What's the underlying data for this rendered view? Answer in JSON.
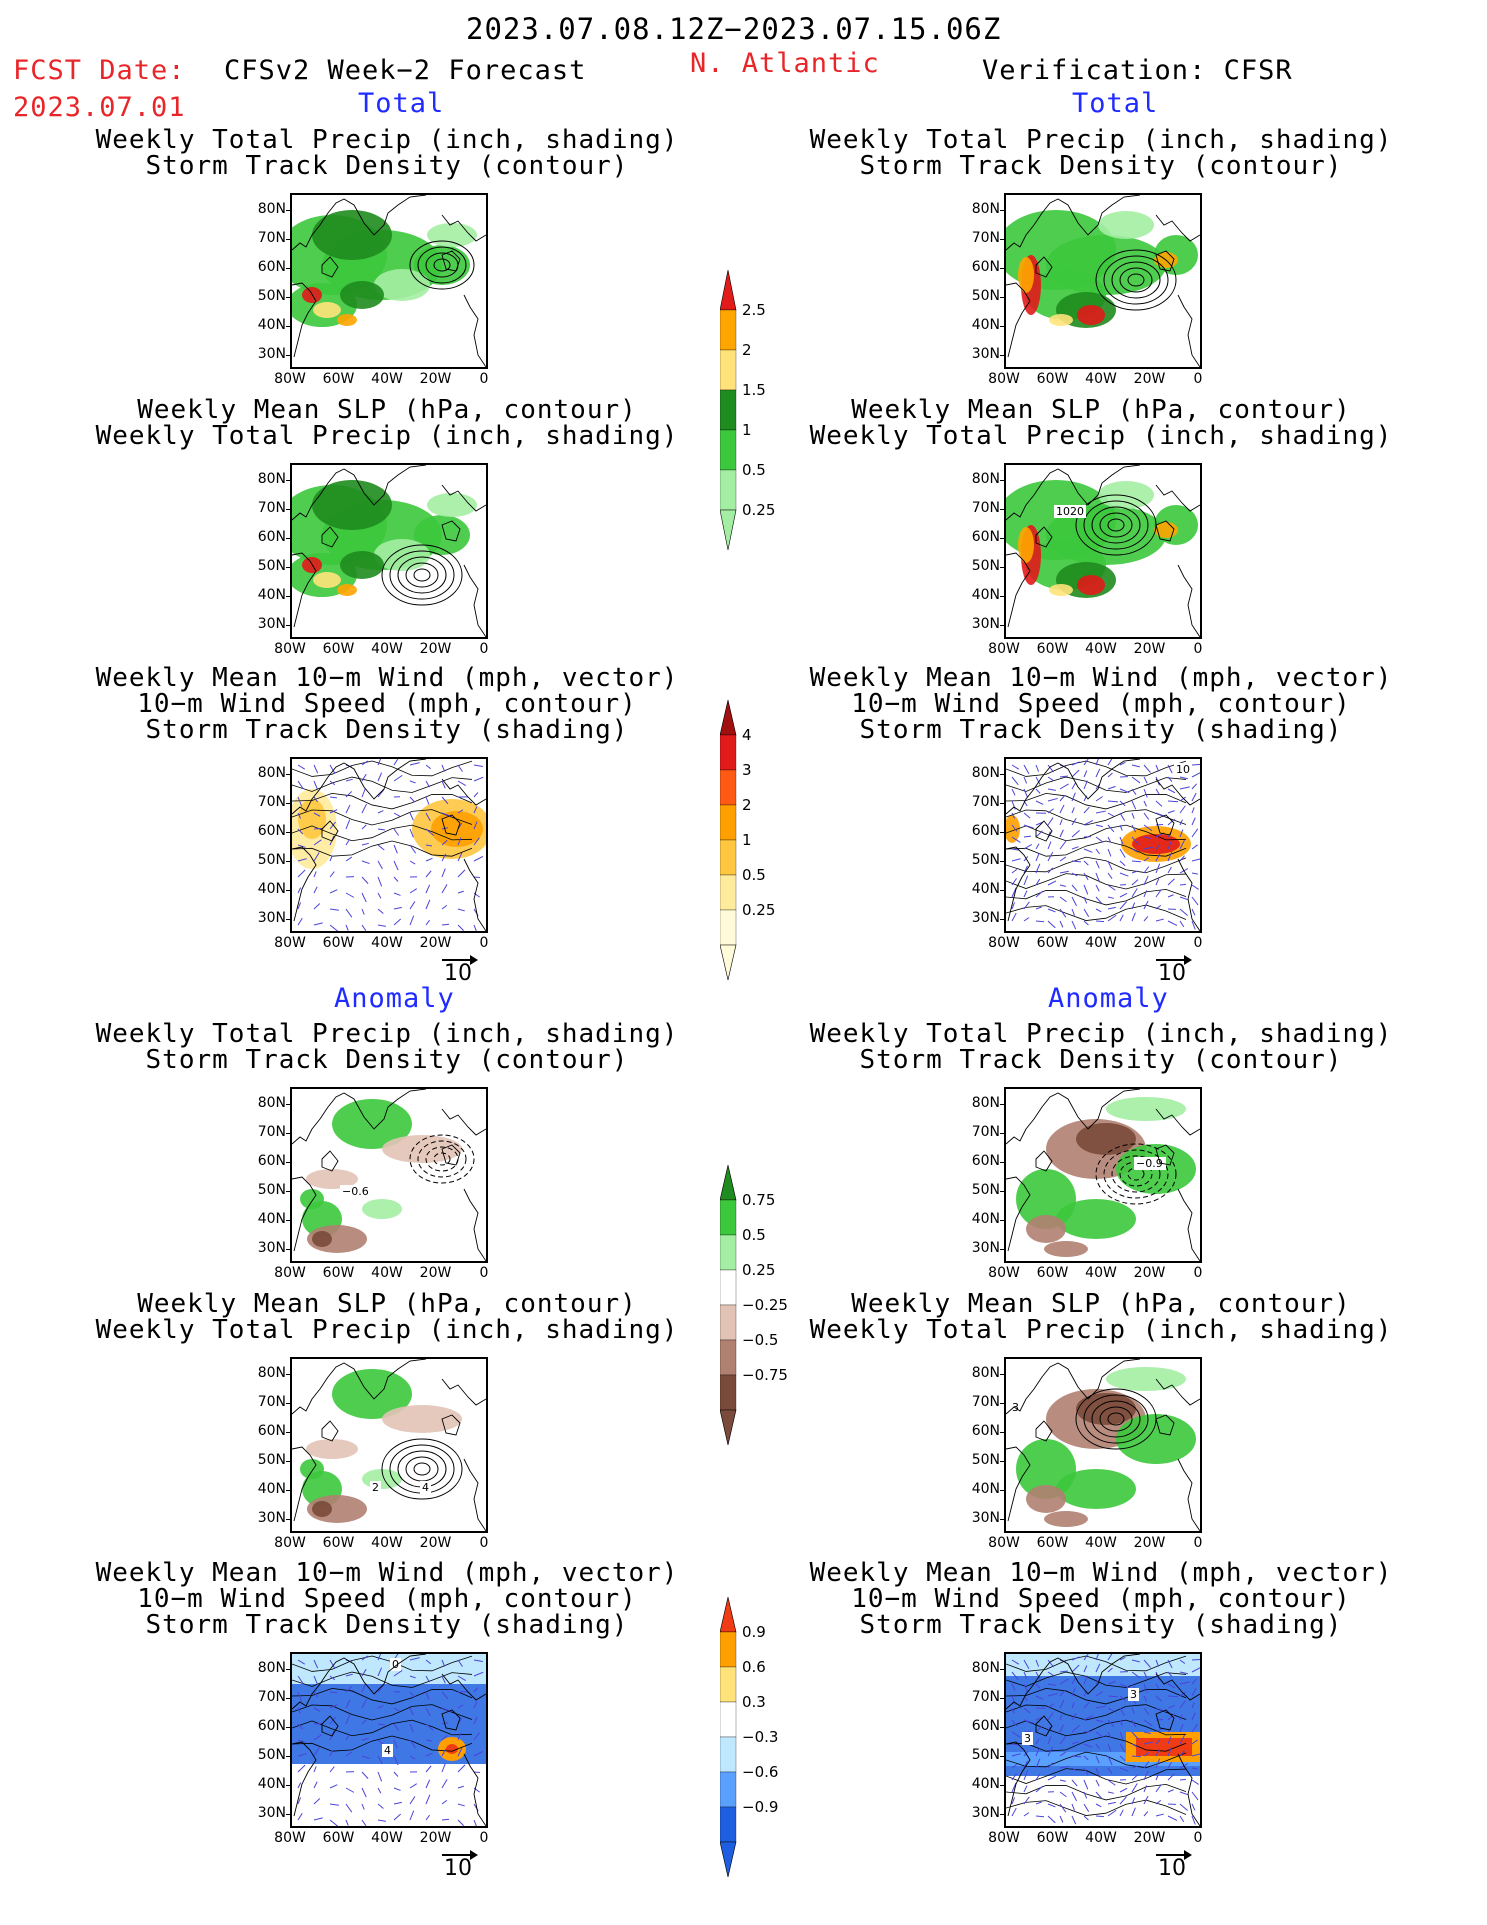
{
  "header": {
    "date_range": "2023.07.08.12Z−2023.07.15.06Z",
    "fcst_label": "FCST Date:",
    "fcst_date": "2023.07.01",
    "left_title": "CFSv2 Week−2 Forecast",
    "region": "N. Atlantic",
    "right_title": "Verification: CFSR",
    "total_label": "Total",
    "anomaly_label": "Anomaly"
  },
  "panel_titles": {
    "precip_storm": [
      "Weekly Total Precip (inch, shading)",
      "Storm Track Density (contour)"
    ],
    "slp_precip": [
      "Weekly Mean SLP (hPa, contour)",
      "Weekly Total Precip (inch, shading)"
    ],
    "wind_storm": [
      "Weekly Mean 10−m Wind (mph, vector)",
      "10−m Wind Speed (mph, contour)",
      "Storm Track Density (shading)"
    ]
  },
  "axes": {
    "lat_labels": [
      "80N",
      "70N",
      "60N",
      "50N",
      "40N",
      "30N"
    ],
    "lon_labels": [
      "80W",
      "60W",
      "40W",
      "20W",
      "0"
    ],
    "vector_ref": "10"
  },
  "contour_labels": {
    "total_slp_obs": "1020",
    "total_wind_obs": "10",
    "anom_precip_fcst": "−0.6",
    "anom_precip_obs": "−0.9",
    "anom_slp_fcst_a": "2",
    "anom_slp_fcst_b": "4",
    "anom_slp_obs": "3",
    "anom_wind_fcst_a": "0",
    "anom_wind_fcst_b": "4",
    "anom_wind_obs_a": "3",
    "anom_wind_obs_b": "3"
  },
  "colorbars": {
    "total_precip": {
      "labels": [
        "2.5",
        "2",
        "1.5",
        "1",
        "0.5",
        "0.25"
      ],
      "colors": [
        "#e11a1a",
        "#ffa500",
        "#ffe37a",
        "#1e8c1e",
        "#3cc83c",
        "#a3eea3"
      ]
    },
    "total_storm": {
      "labels": [
        "4",
        "3",
        "2",
        "1",
        "0.5",
        "0.25"
      ],
      "colors": [
        "#a01010",
        "#e11a1a",
        "#ff5a14",
        "#ffa000",
        "#ffc640",
        "#ffeb9c",
        "#fffbd8"
      ]
    },
    "anom_precip": {
      "labels": [
        "0.75",
        "0.5",
        "0.25",
        "−0.25",
        "−0.5",
        "−0.75"
      ],
      "colors": [
        "#1e8c1e",
        "#3cc83c",
        "#a3eea3",
        "#ffffff",
        "#e3c3b6",
        "#b08070",
        "#7a4a3a"
      ]
    },
    "anom_storm": {
      "labels": [
        "0.9",
        "0.6",
        "0.3",
        "−0.3",
        "−0.6",
        "−0.9"
      ],
      "colors": [
        "#f03c14",
        "#ffa000",
        "#ffe37a",
        "#ffffff",
        "#bfe8ff",
        "#5aa0ff",
        "#1d5fe0"
      ]
    }
  }
}
